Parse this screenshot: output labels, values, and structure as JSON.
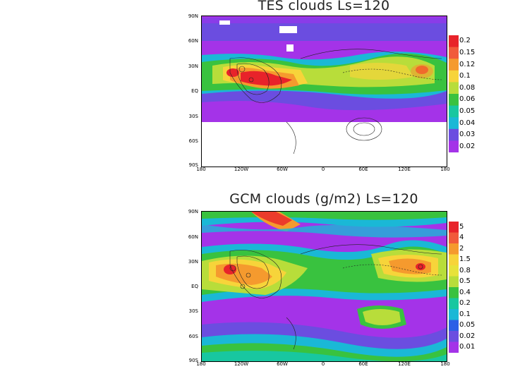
{
  "top": {
    "title": "TES clouds Ls=120",
    "y_ticks": [
      "90N",
      "60N",
      "30N",
      "EQ",
      "30S",
      "60S",
      "90S"
    ],
    "x_ticks": [
      "180",
      "120W",
      "60W",
      "0",
      "60E",
      "120E",
      "180"
    ],
    "colorbar": {
      "levels": [
        "0.2",
        "0.15",
        "0.12",
        "0.1",
        "0.08",
        "0.06",
        "0.05",
        "0.04",
        "0.03",
        "0.02"
      ],
      "colors": [
        "#e8232a",
        "#f15a3b",
        "#f59a2e",
        "#f7d43a",
        "#b8dd3a",
        "#39c23f",
        "#18c7a0",
        "#1ab8d6",
        "#6b4de0",
        "#a433e8"
      ]
    }
  },
  "bottom": {
    "title": "GCM clouds (g/m2) Ls=120",
    "y_ticks": [
      "90N",
      "60N",
      "30N",
      "EQ",
      "30S",
      "60S",
      "90S"
    ],
    "x_ticks": [
      "180",
      "120W",
      "60W",
      "0",
      "60E",
      "120E",
      "180"
    ],
    "colorbar": {
      "levels": [
        "5",
        "4",
        "2",
        "1.5",
        "0.8",
        "0.5",
        "0.4",
        "0.2",
        "0.1",
        "0.05",
        "0.02",
        "0.01"
      ],
      "colors": [
        "#e8232a",
        "#f15a3b",
        "#f59a2e",
        "#f7d43a",
        "#e7e23b",
        "#b8dd3a",
        "#39c23f",
        "#18c7a0",
        "#1ab8d6",
        "#2c5fe6",
        "#6b4de0",
        "#a433e8"
      ]
    }
  }
}
